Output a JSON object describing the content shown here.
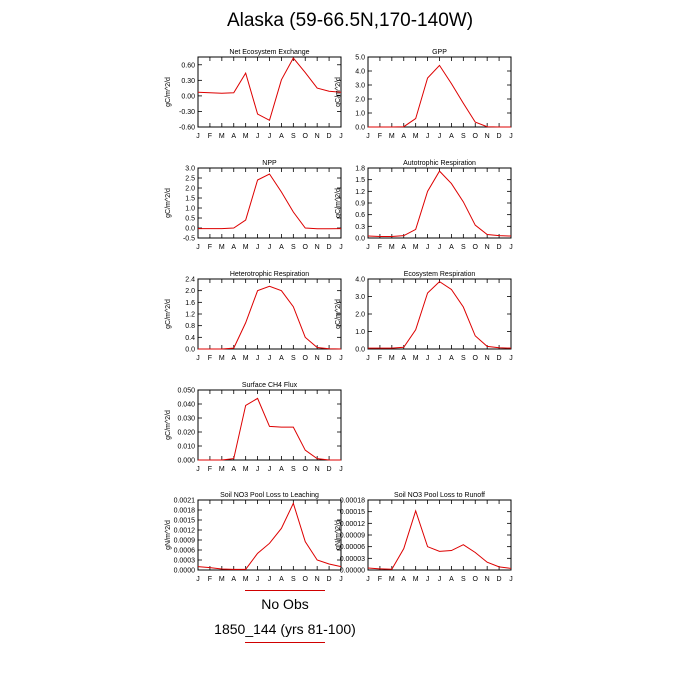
{
  "title": "Alaska (59-66.5N,170-140W)",
  "months": [
    "J",
    "F",
    "M",
    "A",
    "M",
    "J",
    "J",
    "A",
    "S",
    "O",
    "N",
    "D",
    "J"
  ],
  "line_color": "#dd0000",
  "legend": {
    "obs_label": "No Obs",
    "model_label": "1850_144 (yrs 81-100)"
  },
  "chart_data": [
    {
      "type": "line",
      "title": "Net Ecosystem Exchange",
      "ylabel": "gC/m^2/d",
      "ylim": [
        -0.6,
        0.75
      ],
      "yticks": [
        "0.60",
        "0.30",
        "0.00",
        "-0.30",
        "-0.60"
      ],
      "ytick_values": [
        0.6,
        0.3,
        0,
        -0.3,
        -0.6
      ],
      "values": [
        0.07,
        0.06,
        0.05,
        0.06,
        0.44,
        -0.35,
        -0.47,
        0.31,
        0.73,
        0.45,
        0.15,
        0.09,
        0.07
      ]
    },
    {
      "type": "line",
      "title": "GPP",
      "ylabel": "gC/m^2/d",
      "ylim": [
        0,
        5
      ],
      "yticks": [
        "5.0",
        "4.0",
        "3.0",
        "2.0",
        "1.0",
        "0.0"
      ],
      "ytick_values": [
        5,
        4,
        3,
        2,
        1,
        0
      ],
      "values": [
        0.0,
        0.0,
        0.0,
        0.02,
        0.6,
        3.5,
        4.4,
        3.1,
        1.7,
        0.35,
        0.02,
        0.0,
        0.0
      ]
    },
    {
      "type": "line",
      "title": "NPP",
      "ylabel": "gC/m^2/d",
      "ylim": [
        -0.5,
        3
      ],
      "yticks": [
        "3.0",
        "2.5",
        "2.0",
        "1.5",
        "1.0",
        "0.5",
        "0.0",
        "-0.5"
      ],
      "ytick_values": [
        3,
        2.5,
        2,
        1.5,
        1,
        0.5,
        0,
        -0.5
      ],
      "values": [
        -0.03,
        -0.03,
        -0.03,
        0.0,
        0.4,
        2.4,
        2.7,
        1.8,
        0.8,
        0.0,
        -0.04,
        -0.04,
        -0.03
      ]
    },
    {
      "type": "line",
      "title": "Autotrophic Respiration",
      "ylabel": "gC/m^2/d",
      "ylim": [
        0,
        1.8
      ],
      "yticks": [
        "1.8",
        "1.5",
        "1.2",
        "0.9",
        "0.6",
        "0.3",
        "0.0"
      ],
      "ytick_values": [
        1.8,
        1.5,
        1.2,
        0.9,
        0.6,
        0.3,
        0
      ],
      "values": [
        0.05,
        0.04,
        0.04,
        0.06,
        0.22,
        1.2,
        1.72,
        1.4,
        0.93,
        0.33,
        0.09,
        0.06,
        0.05
      ]
    },
    {
      "type": "line",
      "title": "Heterotrophic Respiration",
      "ylabel": "gC/m^2/d",
      "ylim": [
        0,
        2.4
      ],
      "yticks": [
        "2.4",
        "2.0",
        "1.6",
        "1.2",
        "0.8",
        "0.4",
        "0.0"
      ],
      "ytick_values": [
        2.4,
        2,
        1.6,
        1.2,
        0.8,
        0.4,
        0
      ],
      "values": [
        0.0,
        0.0,
        0.0,
        0.03,
        0.9,
        2.0,
        2.15,
        2.0,
        1.45,
        0.4,
        0.05,
        0.01,
        0.0
      ]
    },
    {
      "type": "line",
      "title": "Ecosystem Respiration",
      "ylabel": "gC/m^2/d",
      "ylim": [
        0,
        4
      ],
      "yticks": [
        "4.0",
        "3.0",
        "2.0",
        "1.0",
        "0.0"
      ],
      "ytick_values": [
        4,
        3,
        2,
        1,
        0
      ],
      "values": [
        0.05,
        0.05,
        0.05,
        0.1,
        1.1,
        3.2,
        3.85,
        3.4,
        2.4,
        0.75,
        0.15,
        0.07,
        0.05
      ]
    },
    {
      "type": "line",
      "title": "Surface CH4 Flux",
      "ylabel": "gC/m^2/d",
      "ylim": [
        0,
        0.05
      ],
      "yticks": [
        "0.050",
        "0.040",
        "0.030",
        "0.020",
        "0.010",
        "0.000"
      ],
      "ytick_values": [
        0.05,
        0.04,
        0.03,
        0.02,
        0.01,
        0
      ],
      "values": [
        0.0,
        0.0,
        0.0,
        0.001,
        0.039,
        0.044,
        0.024,
        0.0235,
        0.0235,
        0.007,
        0.001,
        0.0,
        0.0
      ]
    },
    {
      "type": "line",
      "title": "Soil NO3 Pool Loss to Leaching",
      "ylabel": "gN/m^2/d",
      "ylim": [
        0,
        0.0021
      ],
      "yticks": [
        "0.0021",
        "0.0018",
        "0.0015",
        "0.0012",
        "0.0009",
        "0.0006",
        "0.0003",
        "0.0000"
      ],
      "ytick_values": [
        0.0021,
        0.0018,
        0.0015,
        0.0012,
        0.0009,
        0.0006,
        0.0003,
        0
      ],
      "values": [
        0.0001,
        7e-05,
        3e-05,
        2e-05,
        2e-05,
        0.0005,
        0.0008,
        0.00125,
        0.002,
        0.00085,
        0.0003,
        0.00018,
        0.0001
      ]
    },
    {
      "type": "line",
      "title": "Soil NO3 Pool Loss to Runoff",
      "ylabel": "gN/m^2/d",
      "ylim": [
        0,
        0.00018
      ],
      "yticks": [
        "0.00018",
        "0.00015",
        "0.00012",
        "0.00009",
        "0.00006",
        "0.00003",
        "0.00000"
      ],
      "ytick_values": [
        0.00018,
        0.00015,
        0.00012,
        9e-05,
        6e-05,
        3e-05,
        0
      ],
      "values": [
        5e-06,
        3e-06,
        2e-06,
        5.5e-05,
        0.000152,
        6e-05,
        4.8e-05,
        5e-05,
        6.5e-05,
        4.5e-05,
        2e-05,
        8e-06,
        4e-06
      ]
    }
  ]
}
